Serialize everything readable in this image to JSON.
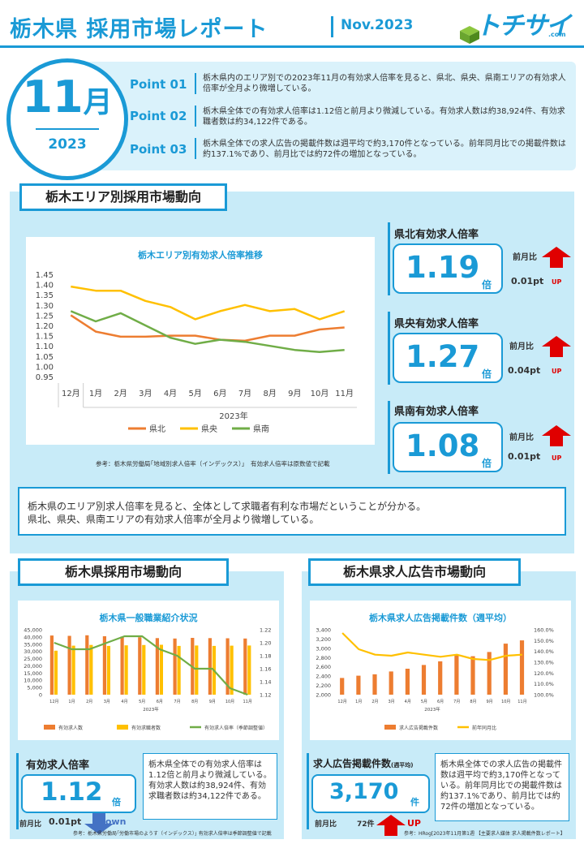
{
  "header": {
    "title": "栃木県 採用市場レポート",
    "date": "Nov.2023",
    "logo": "トチサイ",
    "logo_sub": ".com"
  },
  "month": {
    "number": "11",
    "unit": "月",
    "year": "2023"
  },
  "points": [
    {
      "label": "Point 01",
      "text": "栃木県内のエリア別での2023年11月の有効求人倍率を見ると、県北、県央、県南エリアの有効求人倍率が全月より微増している。"
    },
    {
      "label": "Point 02",
      "text": "栃木県全体での有効求人倍率は1.12倍と前月より微減している。有効求人数は約38,924件、有効求職者数は約34,122件である。"
    },
    {
      "label": "Point 03",
      "text": "栃木県全体での求人広告の掲載件数は週平均で約3,170件となっている。前年同月比での掲載件数は約137.1%であり、前月比では約72件の増加となっている。"
    }
  ],
  "area": {
    "section_title": "栃木エリア別採用市場動向",
    "source": "参考：栃木県労働局｢地域別求人倍率（インデックス）｣　有効求人倍率は原数値で記載",
    "summary_1": "栃木県のエリア別求人倍率を見ると、全体として求職者有利な市場だということが分かる。",
    "summary_2": "県北、県央、県南エリアの有効求人倍率が全月より微増している。",
    "kpis": [
      {
        "label": "県北有効求人倍率",
        "value": "1.19",
        "unit": "倍",
        "cmp": "前月比",
        "delta": "0.01pt",
        "dir": "UP"
      },
      {
        "label": "県央有効求人倍率",
        "value": "1.27",
        "unit": "倍",
        "cmp": "前月比",
        "delta": "0.04pt",
        "dir": "UP"
      },
      {
        "label": "県南有効求人倍率",
        "value": "1.08",
        "unit": "倍",
        "cmp": "前月比",
        "delta": "0.01pt",
        "dir": "UP"
      }
    ]
  },
  "employment": {
    "section_title": "栃木県採用市場動向",
    "kpi_label": "有効求人倍率",
    "kpi_value": "1.12",
    "kpi_unit": "倍",
    "cmp": "前月比",
    "delta": "0.01pt",
    "dir": "down",
    "text": "栃木県全体での有効求人倍率は1.12倍と前月より微減している。有効求人数は約38,924件、有効求職者数は約34,122件である。",
    "source": "参考：栃木県労働局｢労働市場のようす（インデックス）｣ 有効求人倍率は季節調整値で記載"
  },
  "ads": {
    "section_title": "栃木県求人広告市場動向",
    "kpi_label": "求人広告掲載件数",
    "kpi_label_sub": "(週平均)",
    "kpi_value": "3,170",
    "kpi_unit": "件",
    "cmp": "前月比",
    "delta": "72件",
    "dir": "UP",
    "text": "栃木県全体での求人広告の掲載件数は週平均で約3,170件となっている。前年同月比での掲載件数は約137.1%であり、前月比では約72件の増加となっている。",
    "source": "参考：HRog[2023年11月第1週 【主要求人媒体 求人掲載件数レポート】"
  },
  "chart_data": [
    {
      "type": "line",
      "title": "栃木エリア別有効求人倍率推移",
      "categories": [
        "12月",
        "1月",
        "2月",
        "3月",
        "4月",
        "5月",
        "6月",
        "7月",
        "8月",
        "9月",
        "10月",
        "11月"
      ],
      "xlabel": "2023年",
      "ylim": [
        0.95,
        1.45
      ],
      "yticks": [
        "0.95",
        "1.00",
        "1.05",
        "1.10",
        "1.15",
        "1.20",
        "1.25",
        "1.30",
        "1.35",
        "1.40",
        "1.45"
      ],
      "series": [
        {
          "name": "県北",
          "color": "#ed7d31",
          "values": [
            1.25,
            1.17,
            1.145,
            1.145,
            1.15,
            1.15,
            1.13,
            1.125,
            1.15,
            1.15,
            1.18,
            1.19
          ]
        },
        {
          "name": "県央",
          "color": "#ffc000",
          "values": [
            1.39,
            1.37,
            1.37,
            1.32,
            1.29,
            1.23,
            1.27,
            1.3,
            1.27,
            1.28,
            1.23,
            1.27
          ]
        },
        {
          "name": "県南",
          "color": "#70ad47",
          "values": [
            1.27,
            1.22,
            1.26,
            1.2,
            1.14,
            1.11,
            1.13,
            1.12,
            1.1,
            1.08,
            1.07,
            1.08
          ]
        }
      ]
    },
    {
      "type": "bar",
      "title": "栃木県一般職業紹介状況",
      "categories": [
        "12月",
        "1月",
        "2月",
        "3月",
        "4月",
        "5月",
        "6月",
        "7月",
        "8月",
        "9月",
        "10月",
        "11月"
      ],
      "xlabel": "2023年",
      "ylim": [
        0,
        45000
      ],
      "yticks": [
        "0",
        "5,000",
        "10,000",
        "15,000",
        "20,000",
        "25,000",
        "30,000",
        "35,000",
        "40,000",
        "45,000"
      ],
      "y2lim": [
        1.12,
        1.22
      ],
      "y2ticks": [
        "1.12",
        "1.14",
        "1.16",
        "1.18",
        "1.20",
        "1.22"
      ],
      "series": [
        {
          "name": "有効求人数",
          "color": "#ed7d31",
          "values": [
            41000,
            40800,
            41200,
            40500,
            40300,
            39800,
            39200,
            38900,
            39400,
            39200,
            39100,
            38900
          ]
        },
        {
          "name": "有効求職者数",
          "color": "#ffc000",
          "values": [
            30500,
            34000,
            34500,
            33800,
            34200,
            34400,
            34600,
            33800,
            34100,
            33800,
            34000,
            34100
          ]
        },
        {
          "name": "有効求人倍率（季節調整値）",
          "color": "#70ad47",
          "axis": "right",
          "values": [
            1.2,
            1.19,
            1.19,
            1.2,
            1.21,
            1.21,
            1.19,
            1.18,
            1.16,
            1.16,
            1.13,
            1.12
          ]
        }
      ]
    },
    {
      "type": "bar",
      "title": "栃木県求人広告掲載件数（週平均）",
      "categories": [
        "12月",
        "1月",
        "2月",
        "3月",
        "4月",
        "5月",
        "6月",
        "7月",
        "8月",
        "9月",
        "10月",
        "11月"
      ],
      "xlabel": "2023年",
      "ylim": [
        2000,
        3400
      ],
      "yticks": [
        "2,000",
        "2,200",
        "2,400",
        "2,600",
        "2,800",
        "3,000",
        "3,200",
        "3,400"
      ],
      "y2lim": [
        100,
        160
      ],
      "y2ticks": [
        "100.0%",
        "110.0%",
        "120.0%",
        "130.0%",
        "140.0%",
        "150.0%",
        "160.0%"
      ],
      "series": [
        {
          "name": "求人広告掲載件数",
          "color": "#ed7d31",
          "values": [
            2360,
            2410,
            2440,
            2500,
            2560,
            2640,
            2720,
            2850,
            2830,
            2920,
            3100,
            3170
          ]
        },
        {
          "name": "前年同月比",
          "color": "#ffc000",
          "axis": "right",
          "values": [
            157,
            142,
            137,
            136,
            139,
            137,
            135,
            137,
            133,
            132,
            136,
            137
          ]
        }
      ]
    }
  ]
}
